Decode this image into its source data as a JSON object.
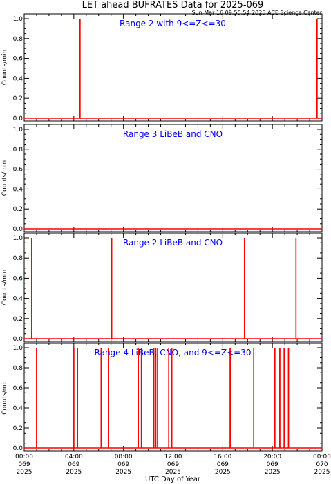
{
  "header": {
    "title": "LET ahead BUFRATES Data for 2025-069",
    "timestamp": "Sun Mar 16 09:55:54 2025 ACE Science Center"
  },
  "colors": {
    "data": "#ff0000",
    "label": "#0000ff",
    "axis": "#000000"
  },
  "chart_data": [
    {
      "type": "line",
      "title": "Range 2 with 9<=Z<=30",
      "ylabel": "Counts/min",
      "xlim": [
        0,
        24
      ],
      "ylim": [
        0,
        1
      ],
      "yticks": [
        "0.0",
        "0.2",
        "0.4",
        "0.6",
        "0.8",
        "1.0"
      ],
      "spikes_hours": [
        4.5,
        23.6
      ]
    },
    {
      "type": "line",
      "title": "Range 3 LiBeB and CNO",
      "ylabel": "Counts/min",
      "xlim": [
        0,
        24
      ],
      "ylim": [
        0,
        1
      ],
      "yticks": [
        "0.0",
        "0.2",
        "0.4",
        "0.6",
        "0.8",
        "1.0"
      ],
      "spikes_hours": []
    },
    {
      "type": "line",
      "title": "Range 2 LiBeB and CNO",
      "ylabel": "Counts/min",
      "xlim": [
        0,
        24
      ],
      "ylim": [
        0,
        1
      ],
      "yticks": [
        "0.0",
        "0.2",
        "0.4",
        "0.6",
        "0.8",
        "1.0"
      ],
      "spikes_hours": [
        0.6,
        7.05,
        17.75,
        21.9
      ]
    },
    {
      "type": "line",
      "title": "Range 4 LiBeB, CNO, and 9<=Z<=30",
      "ylabel": "Counts/min",
      "xlim": [
        0,
        24
      ],
      "ylim": [
        0,
        1
      ],
      "yticks": [
        "0.0",
        "0.2",
        "0.4",
        "0.6",
        "0.8",
        "1.0"
      ],
      "spikes_hours": [
        1.0,
        4.0,
        4.3,
        6.2,
        6.8,
        9.2,
        9.45,
        10.45,
        10.6,
        10.75,
        11.65,
        11.9,
        16.6,
        18.5,
        20.2,
        20.6,
        20.95,
        21.3
      ]
    }
  ],
  "xaxis": {
    "label": "UTC Day of Year",
    "ticks": [
      {
        "hour": 0,
        "time": "00:00",
        "doy": "069",
        "year": "2025"
      },
      {
        "hour": 4,
        "time": "04:00",
        "doy": "069",
        "year": "2025"
      },
      {
        "hour": 8,
        "time": "08:00",
        "doy": "069",
        "year": "2025"
      },
      {
        "hour": 12,
        "time": "12:00",
        "doy": "069",
        "year": "2025"
      },
      {
        "hour": 16,
        "time": "16:00",
        "doy": "069",
        "year": "2025"
      },
      {
        "hour": 20,
        "time": "20:00",
        "doy": "069",
        "year": "2025"
      },
      {
        "hour": 24,
        "time": "00:00",
        "doy": "070",
        "year": "2025"
      }
    ]
  }
}
